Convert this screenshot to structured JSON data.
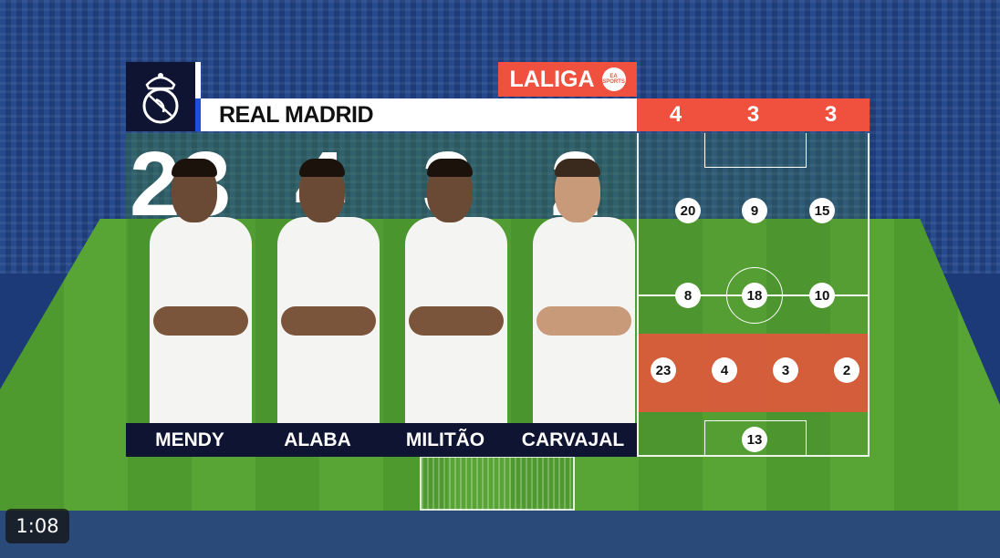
{
  "header": {
    "team": "REAL MADRID",
    "league": "LALIGA",
    "league_sponsor": "EA SPORTS",
    "formation": [
      "4",
      "3",
      "3"
    ]
  },
  "colors": {
    "accent": "#f0513f",
    "navy": "#0f1433",
    "blue": "#1d4fd8"
  },
  "players": [
    {
      "number": "23",
      "name": "MENDY"
    },
    {
      "number": "4",
      "name": "ALABA"
    },
    {
      "number": "3",
      "name": "MILITÃO"
    },
    {
      "number": "2",
      "name": "CARVAJAL"
    }
  ],
  "lineup": {
    "forwards": [
      "20",
      "9",
      "15"
    ],
    "midfielders": [
      "8",
      "18",
      "10"
    ],
    "defenders": [
      "23",
      "4",
      "3",
      "2"
    ],
    "goalkeeper": "13"
  },
  "video": {
    "timestamp": "1:08"
  }
}
